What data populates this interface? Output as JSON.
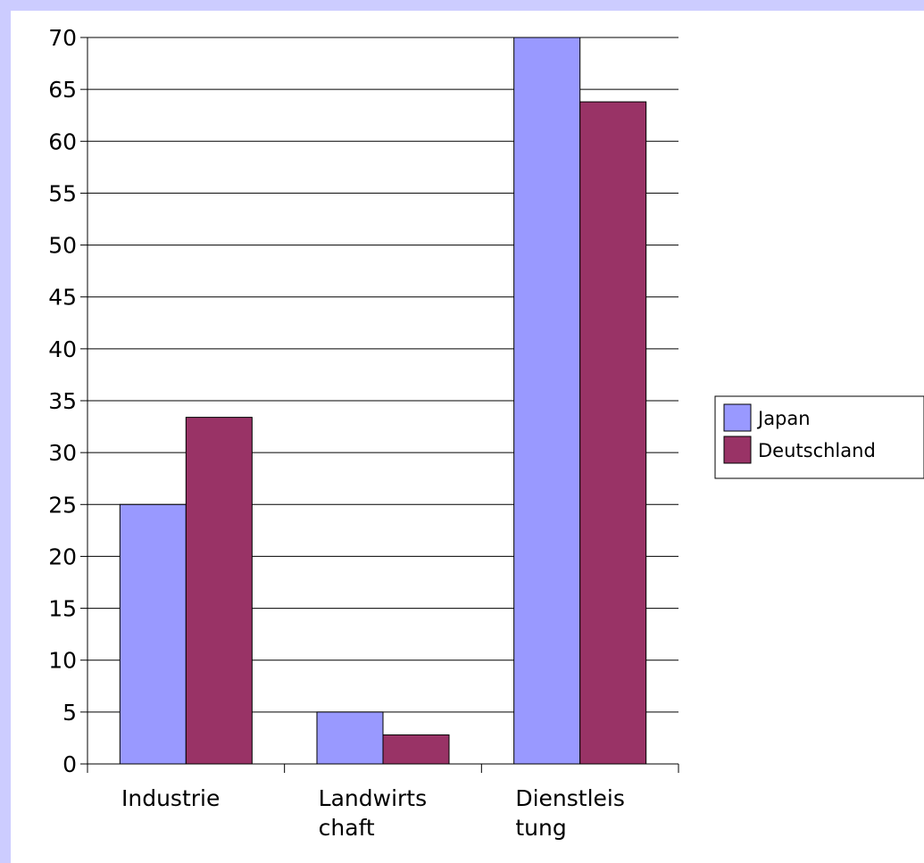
{
  "chart_data": {
    "type": "bar",
    "title": "",
    "xlabel": "",
    "ylabel": "",
    "categories": [
      [
        "Industrie"
      ],
      [
        "Landwirts",
        "chaft"
      ],
      [
        "Dienstleis",
        "tung"
      ]
    ],
    "series": [
      {
        "name": "Japan",
        "color": "#9999ff",
        "values": [
          25,
          5,
          70
        ]
      },
      {
        "name": "Deutschland",
        "color": "#993366",
        "values": [
          33.4,
          2.8,
          63.8
        ]
      }
    ],
    "ylim": [
      0,
      70
    ],
    "yticks": [
      "0",
      "5",
      "10",
      "15",
      "20",
      "25",
      "30",
      "35",
      "40",
      "45",
      "50",
      "55",
      "60",
      "65",
      "70"
    ],
    "grid": true,
    "legend_position": "right"
  }
}
